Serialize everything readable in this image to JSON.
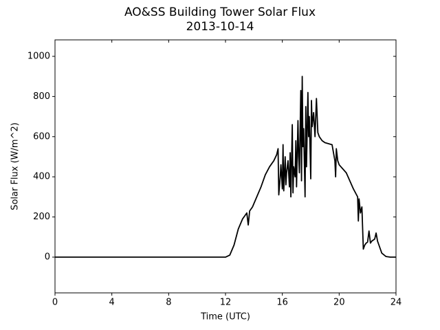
{
  "chart_data": {
    "type": "line",
    "title": "AO&SS Building Tower Solar Flux",
    "subtitle": "2013-10-14",
    "x_label": "Time (UTC)",
    "y_label": "Solar Flux (W/m^2)",
    "color": "#000000",
    "x": [
      0,
      2,
      4,
      6,
      8,
      10,
      11,
      12,
      12.3,
      12.6,
      12.9,
      13.2,
      13.5,
      13.6,
      13.7,
      13.9,
      14.2,
      14.5,
      14.8,
      15.1,
      15.4,
      15.6,
      15.7,
      15.75,
      15.85,
      15.9,
      16.0,
      16.05,
      16.1,
      16.2,
      16.25,
      16.3,
      16.4,
      16.5,
      16.55,
      16.6,
      16.7,
      16.75,
      16.8,
      16.9,
      16.95,
      17.0,
      17.1,
      17.15,
      17.2,
      17.3,
      17.35,
      17.4,
      17.45,
      17.5,
      17.6,
      17.65,
      17.7,
      17.8,
      17.85,
      17.9,
      18.0,
      18.05,
      18.1,
      18.2,
      18.3,
      18.4,
      18.5,
      18.6,
      18.8,
      19.0,
      19.5,
      19.7,
      19.75,
      19.8,
      19.9,
      20.0,
      20.5,
      21.0,
      21.3,
      21.35,
      21.4,
      21.5,
      21.6,
      21.7,
      21.8,
      21.9,
      22.0,
      22.1,
      22.2,
      22.3,
      22.5,
      22.6,
      22.7,
      22.8,
      23.0,
      23.3,
      23.6,
      24
    ],
    "values": [
      0,
      0,
      0,
      0,
      0,
      0,
      0,
      0,
      10,
      60,
      140,
      190,
      220,
      160,
      230,
      250,
      300,
      350,
      410,
      450,
      480,
      510,
      540,
      310,
      400,
      460,
      340,
      560,
      330,
      500,
      360,
      420,
      480,
      350,
      520,
      300,
      660,
      320,
      450,
      400,
      580,
      350,
      680,
      500,
      420,
      830,
      380,
      900,
      550,
      640,
      300,
      750,
      450,
      820,
      600,
      700,
      390,
      780,
      650,
      720,
      600,
      790,
      620,
      600,
      580,
      570,
      560,
      480,
      400,
      540,
      480,
      460,
      420,
      340,
      300,
      180,
      290,
      220,
      250,
      40,
      60,
      70,
      75,
      130,
      70,
      80,
      90,
      120,
      80,
      60,
      20,
      3,
      0,
      0
    ],
    "xlim": [
      0,
      24
    ],
    "xticks": [
      0,
      4,
      8,
      12,
      16,
      20,
      24
    ],
    "ylim": [
      -178,
      1082
    ],
    "yticks": [
      0,
      200,
      400,
      600,
      800,
      1000
    ],
    "grid": false
  }
}
